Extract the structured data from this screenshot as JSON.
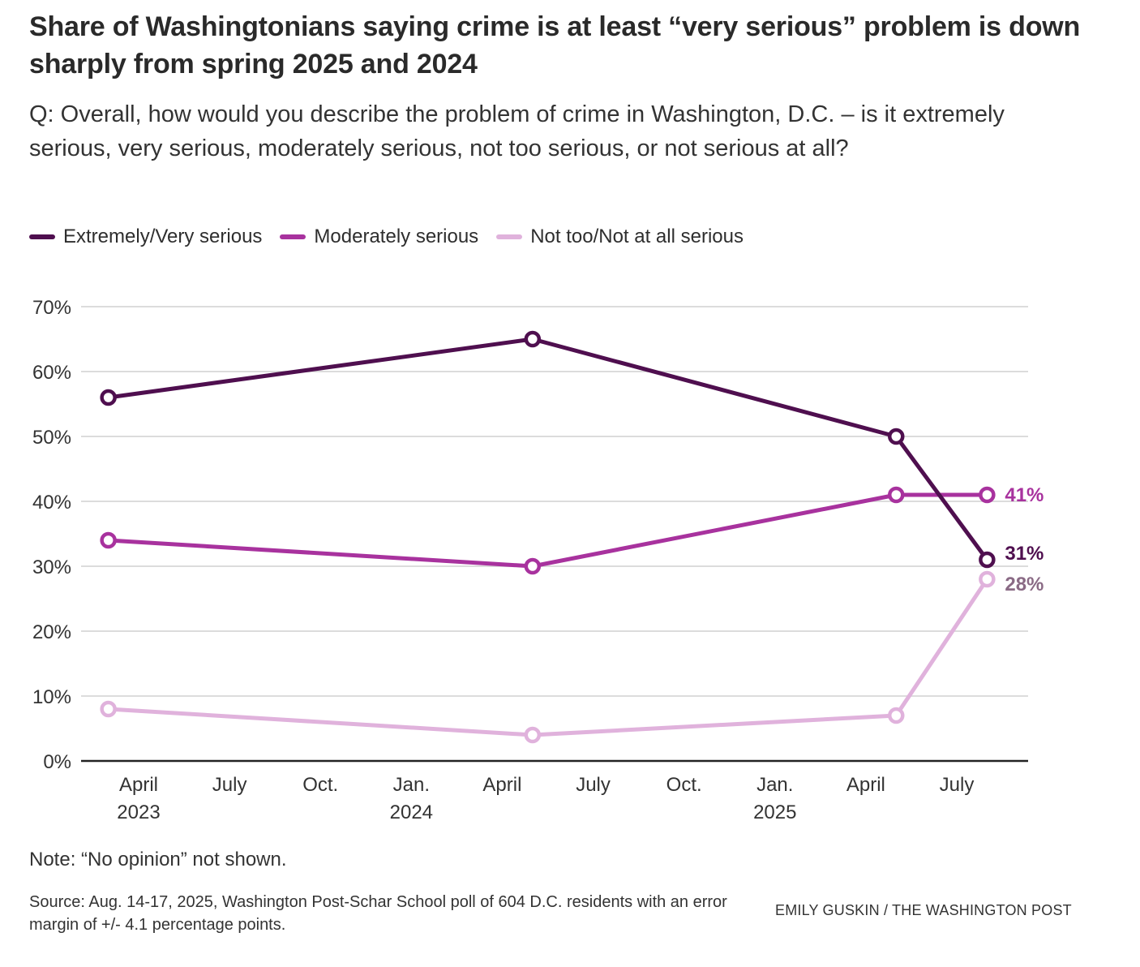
{
  "header": {
    "title": "Share of Washingtonians saying crime is at least “very serious” problem is down sharply from spring 2025 and 2024",
    "subtitle": "Q: Overall, how would you describe the problem of crime in Washington, D.C. – is it extremely serious, very serious, moderately serious, not too serious, or not serious at all?"
  },
  "legend": [
    {
      "label": "Extremely/Very serious",
      "color": "#4f0f4f"
    },
    {
      "label": "Moderately serious",
      "color": "#a8329e"
    },
    {
      "label": "Not too/Not at all serious",
      "color": "#e0b2dc"
    }
  ],
  "footer": {
    "note": "Note: “No opinion” not shown.",
    "source": "Source: Aug. 14-17, 2025, Washington Post-Schar School poll of 604 D.C. residents with an error margin of +/- 4.1 percentage points.",
    "credit": "EMILY GUSKIN / THE WASHINGTON POST"
  },
  "chart_data": {
    "type": "line",
    "title": "Share of Washingtonians saying crime is at least “very serious” problem is down sharply from spring 2025 and 2024",
    "xlabel": "",
    "ylabel": "",
    "x": [
      "2023-03",
      "2024-05",
      "2025-05",
      "2025-08"
    ],
    "x_month_index": [
      2,
      16,
      28,
      31
    ],
    "xlim_month_index": [
      1.1,
      32.3
    ],
    "ylim": [
      0,
      70
    ],
    "yticks": [
      0,
      10,
      20,
      30,
      40,
      50,
      60,
      70
    ],
    "ytick_labels": [
      "0%",
      "10%",
      "20%",
      "30%",
      "40%",
      "50%",
      "60%",
      "70%"
    ],
    "xticks": [
      {
        "month_index": 3,
        "label": "April",
        "sublabel": "2023"
      },
      {
        "month_index": 6,
        "label": "July",
        "sublabel": ""
      },
      {
        "month_index": 9,
        "label": "Oct.",
        "sublabel": ""
      },
      {
        "month_index": 12,
        "label": "Jan.",
        "sublabel": "2024"
      },
      {
        "month_index": 15,
        "label": "April",
        "sublabel": ""
      },
      {
        "month_index": 18,
        "label": "July",
        "sublabel": ""
      },
      {
        "month_index": 21,
        "label": "Oct.",
        "sublabel": ""
      },
      {
        "month_index": 24,
        "label": "Jan.",
        "sublabel": "2025"
      },
      {
        "month_index": 27,
        "label": "April",
        "sublabel": ""
      },
      {
        "month_index": 30,
        "label": "July",
        "sublabel": ""
      }
    ],
    "grid": true,
    "legend_position": "top-left",
    "series": [
      {
        "name": "Extremely/Very serious",
        "color": "#4f0f4f",
        "label_color": "#4f0f4f",
        "values": [
          56,
          65,
          50,
          31
        ],
        "end_label": "31%"
      },
      {
        "name": "Moderately serious",
        "color": "#a8329e",
        "label_color": "#a8329e",
        "values": [
          34,
          30,
          41,
          41
        ],
        "end_label": "41%"
      },
      {
        "name": "Not too/Not at all serious",
        "color": "#e0b2dc",
        "label_color": "#8a6a85",
        "values": [
          8,
          4,
          7,
          28
        ],
        "end_label": "28%"
      }
    ]
  }
}
